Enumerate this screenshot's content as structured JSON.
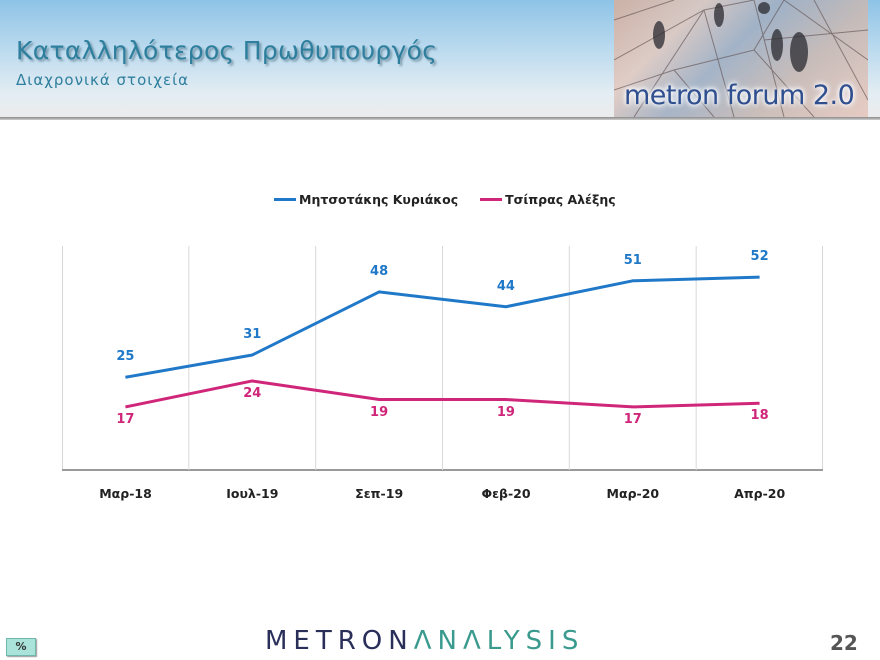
{
  "header": {
    "title": "Καταλληλότερος Πρωθυπουργός",
    "subtitle": "Διαχρονικά στοιχεία",
    "banner_text": "metron forum 2.0"
  },
  "legend": {
    "items": [
      {
        "label": "Μητσοτάκης Κυριάκος",
        "color": "#1f78c8"
      },
      {
        "label": "Τσίπρας Αλέξης",
        "color": "#d0267a"
      }
    ]
  },
  "chart_data": {
    "type": "line",
    "title": "Καταλληλότερος Πρωθυπουργός",
    "subtitle": "Διαχρονικά στοιχεία",
    "xlabel": "",
    "ylabel": "%",
    "categories": [
      "Μαρ-18",
      "Ιουλ-19",
      "Σεπ-19",
      "Φεβ-20",
      "Μαρ-20",
      "Απρ-20"
    ],
    "series": [
      {
        "name": "Μητσοτάκης Κυριάκος",
        "color": "#1f78c8",
        "values": [
          25,
          31,
          48,
          44,
          51,
          52
        ]
      },
      {
        "name": "Τσίπρας Αλέξης",
        "color": "#d0267a",
        "values": [
          17,
          24,
          19,
          19,
          17,
          18
        ]
      }
    ],
    "ylim": [
      0,
      60
    ],
    "grid": "vertical",
    "legend_position": "top",
    "data_labels": true
  },
  "footer": {
    "unit_badge": "%",
    "logo_part1": "METRON",
    "logo_part2": "ΛNΛLYSIS",
    "page_number": "22"
  }
}
